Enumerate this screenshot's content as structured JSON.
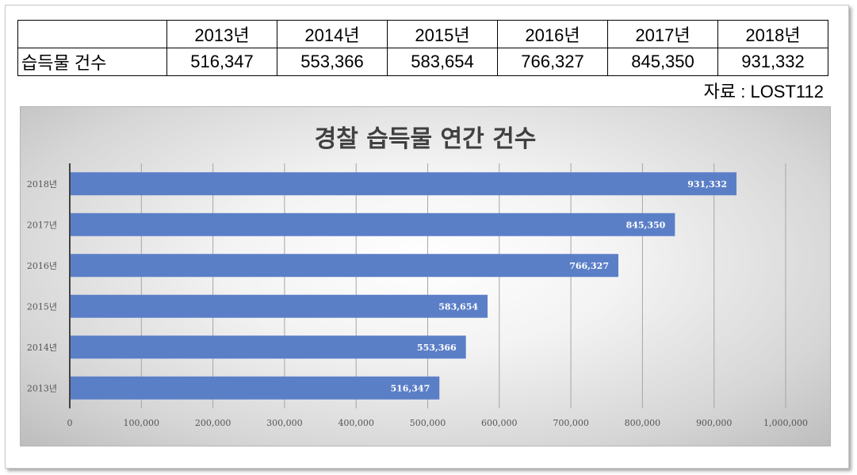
{
  "table": {
    "years": [
      "2013년",
      "2014년",
      "2015년",
      "2016년",
      "2017년",
      "2018년"
    ],
    "row_label": "습득물 건수",
    "values": [
      "516,347",
      "553,366",
      "583,654",
      "766,327",
      "845,350",
      "931,332"
    ]
  },
  "source_text": "자료 : LOST112",
  "colors": {
    "bar": "#5b7fc7",
    "axis": "#404040",
    "grid": "#a6a6a6"
  },
  "chart_data": {
    "type": "bar",
    "orientation": "horizontal",
    "title": "경찰 습득물 연간 건수",
    "categories": [
      "2013년",
      "2014년",
      "2015년",
      "2016년",
      "2017년",
      "2018년"
    ],
    "values": [
      516347,
      553366,
      583654,
      766327,
      845350,
      931332
    ],
    "value_labels": [
      "516,347",
      "553,366",
      "583,654",
      "766,327",
      "845,350",
      "931,332"
    ],
    "xlim": [
      0,
      1000000
    ],
    "x_ticks": [
      0,
      100000,
      200000,
      300000,
      400000,
      500000,
      600000,
      700000,
      800000,
      900000,
      1000000
    ],
    "x_tick_labels": [
      "0",
      "100,000",
      "200,000",
      "300,000",
      "400,000",
      "500,000",
      "600,000",
      "700,000",
      "800,000",
      "900,000",
      "1,000,000"
    ],
    "xlabel": "",
    "ylabel": "",
    "grid": true,
    "legend": "none"
  }
}
